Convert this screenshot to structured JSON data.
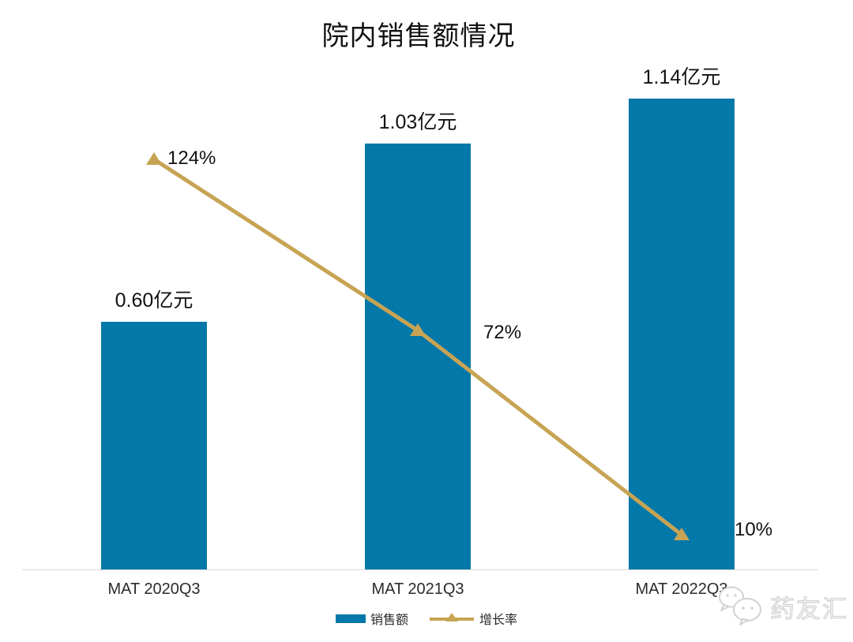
{
  "chart_data": {
    "type": "bar",
    "subtype": "combo-bar-line",
    "title": "院内销售额情况",
    "categories": [
      "MAT 2020Q3",
      "MAT 2021Q3",
      "MAT 2022Q3"
    ],
    "series": [
      {
        "name": "销售额",
        "type": "bar",
        "unit": "亿元",
        "values": [
          0.6,
          1.03,
          1.14
        ],
        "labels": [
          "0.60亿元",
          "1.03亿元",
          "1.14亿元"
        ],
        "color": "#0478A8"
      },
      {
        "name": "增长率",
        "type": "line",
        "unit": "%",
        "values": [
          124,
          72,
          10
        ],
        "labels": [
          "124%",
          "72%",
          "10%"
        ],
        "color": "#C7A454"
      }
    ],
    "xlabel": "",
    "ylabel": "",
    "bar_axis_range": [
      0,
      1.38
    ],
    "line_axis_range": [
      0,
      140
    ],
    "grid": false,
    "legend_position": "bottom"
  },
  "watermark": {
    "text": "药友汇"
  },
  "colors": {
    "bar": "#0478A8",
    "line": "#C7A454",
    "axis": "#d9d9d9",
    "text": "#111111"
  }
}
